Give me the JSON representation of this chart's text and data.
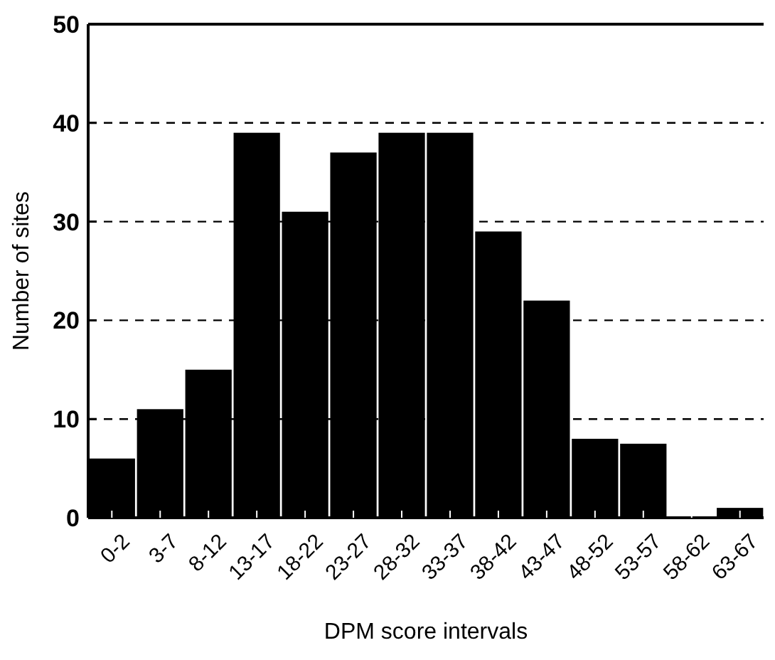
{
  "chart_data": {
    "type": "bar",
    "xlabel": "DPM score intervals",
    "ylabel": "Number of sites",
    "categories": [
      "0-2",
      "3-7",
      "8-12",
      "13-17",
      "18-22",
      "23-27",
      "28-32",
      "33-37",
      "38-42",
      "43-47",
      "48-52",
      "53-57",
      "58-62",
      "63-67"
    ],
    "values": [
      6,
      11,
      15,
      39,
      31,
      37,
      39,
      39,
      29,
      22,
      8,
      7.5,
      0,
      1
    ],
    "color": "#000000",
    "ylim": [
      0,
      50
    ],
    "yticks": [
      0,
      10,
      20,
      30,
      40,
      50
    ],
    "grid": "y"
  }
}
